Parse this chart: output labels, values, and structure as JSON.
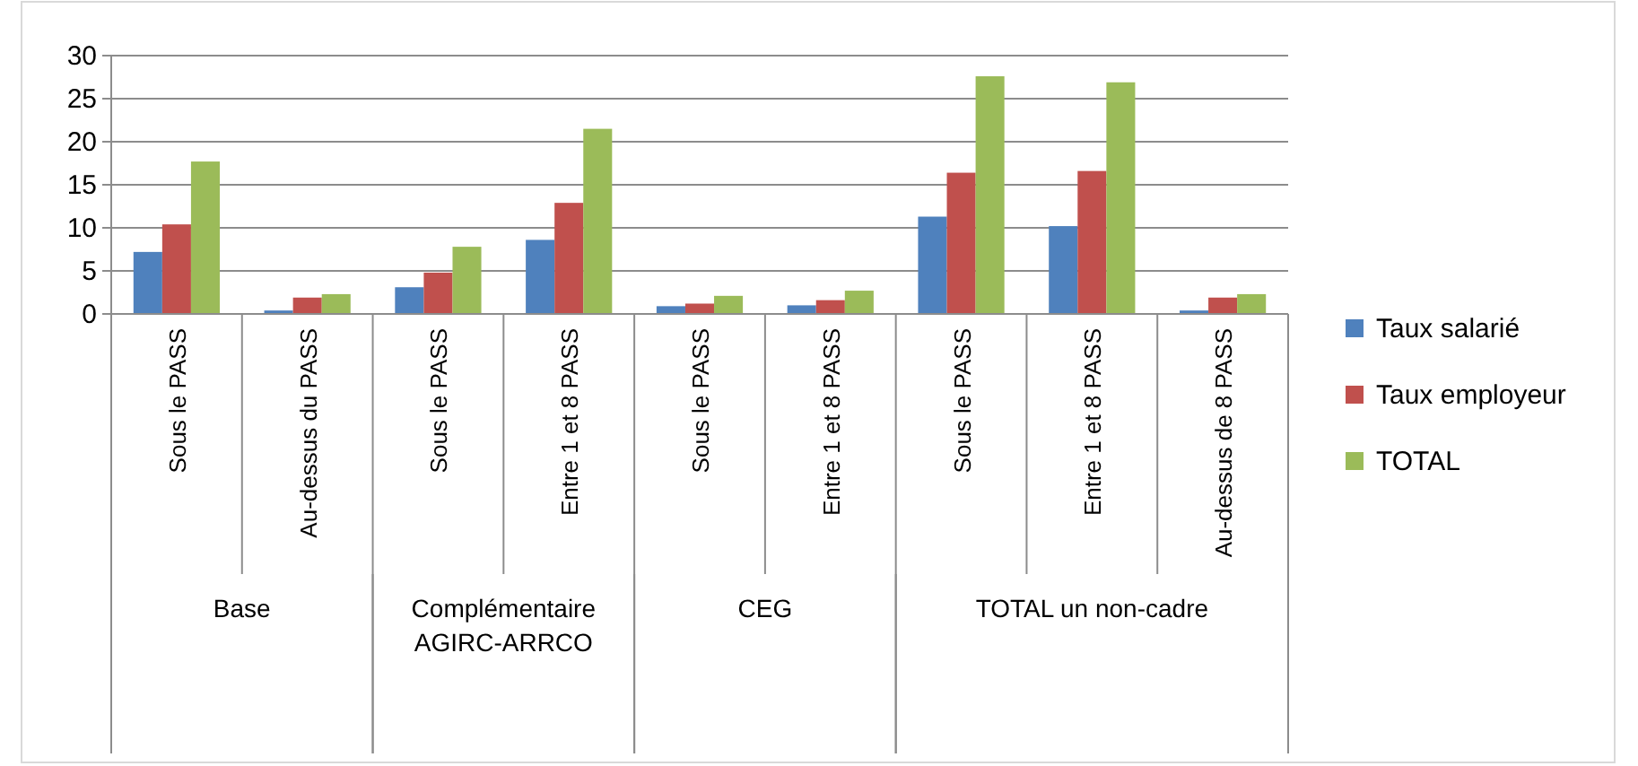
{
  "chart_data": {
    "type": "bar",
    "categories": [
      "Sous le PASS",
      "Au-dessus du PASS",
      "Sous le PASS",
      "Entre 1 et 8 PASS",
      "Sous le PASS",
      "Entre 1 et 8 PASS",
      "Sous le PASS",
      "Entre 1 et 8 PASS",
      "Au-dessus de 8 PASS"
    ],
    "series": [
      {
        "name": "Taux salarié",
        "color": "#4f81bd",
        "values": [
          7.2,
          0.4,
          3.1,
          8.6,
          0.9,
          1.0,
          11.3,
          10.2,
          0.4
        ]
      },
      {
        "name": "Taux employeur",
        "color": "#c0504d",
        "values": [
          10.4,
          1.9,
          4.8,
          12.9,
          1.2,
          1.6,
          16.4,
          16.6,
          1.9
        ]
      },
      {
        "name": "TOTAL",
        "color": "#9bbb59",
        "values": [
          17.7,
          2.3,
          7.8,
          21.5,
          2.1,
          2.7,
          27.6,
          26.9,
          2.3
        ]
      }
    ],
    "annotations": [
      "Base",
      "Complémentaire AGIRC-ARRCO",
      "CEG",
      "TOTAL un non-cadre"
    ],
    "ylim": [
      0,
      30
    ],
    "yticks": [
      0,
      5,
      10,
      15,
      20,
      25,
      30
    ],
    "grid": "y",
    "legend": "right"
  }
}
